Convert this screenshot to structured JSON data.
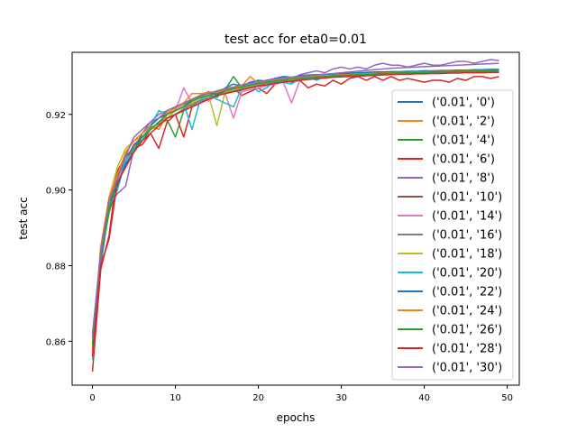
{
  "chart_data": {
    "type": "line",
    "title": "test acc for eta0=0.01",
    "xlabel": "epochs",
    "ylabel": "test acc",
    "xlim": [
      -2.45,
      51.45
    ],
    "ylim": [
      0.8484,
      0.9364
    ],
    "xticks": [
      0,
      10,
      20,
      30,
      40,
      50
    ],
    "xtick_labels": [
      "0",
      "10",
      "20",
      "30",
      "40",
      "50"
    ],
    "yticks": [
      0.86,
      0.88,
      0.9,
      0.92
    ],
    "ytick_labels": [
      "0.86",
      "0.88",
      "0.90",
      "0.92"
    ],
    "grid": false,
    "legend_position": "lower-right",
    "x": [
      0,
      1,
      2,
      3,
      4,
      5,
      6,
      7,
      8,
      9,
      10,
      11,
      12,
      13,
      14,
      15,
      16,
      17,
      18,
      19,
      20,
      21,
      22,
      23,
      24,
      25,
      26,
      27,
      28,
      29,
      30,
      31,
      32,
      33,
      34,
      35,
      36,
      37,
      38,
      39,
      40,
      41,
      42,
      43,
      44,
      45,
      46,
      47,
      48,
      49
    ],
    "series": [
      {
        "name": "('0.01', '0')",
        "color": "#1f77b4",
        "values": [
          0.86,
          0.88,
          0.895,
          0.9,
          0.908,
          0.912,
          0.914,
          0.916,
          0.918,
          0.919,
          0.92,
          0.921,
          0.923,
          0.924,
          0.925,
          0.9255,
          0.926,
          0.9265,
          0.927,
          0.9275,
          0.928,
          0.9282,
          0.9285,
          0.9288,
          0.929,
          0.9292,
          0.9295,
          0.9297,
          0.9298,
          0.93,
          0.9302,
          0.9303,
          0.9305,
          0.9306,
          0.9307,
          0.9308,
          0.9309,
          0.931,
          0.9311,
          0.9312,
          0.9313,
          0.9314,
          0.9314,
          0.9315,
          0.9315,
          0.9316,
          0.9316,
          0.9317,
          0.9317,
          0.9318
        ]
      },
      {
        "name": "('0.01', '2')",
        "color": "#ff7f0e",
        "values": [
          0.858,
          0.884,
          0.896,
          0.903,
          0.91,
          0.913,
          0.915,
          0.917,
          0.919,
          0.9205,
          0.9215,
          0.9225,
          0.924,
          0.9248,
          0.9255,
          0.9258,
          0.9262,
          0.9268,
          0.9272,
          0.9278,
          0.9282,
          0.9286,
          0.9288,
          0.9291,
          0.9293,
          0.9295,
          0.9297,
          0.9299,
          0.93,
          0.9301,
          0.9303,
          0.9304,
          0.9305,
          0.9306,
          0.9307,
          0.9308,
          0.9309,
          0.931,
          0.9311,
          0.9311,
          0.9312,
          0.9312,
          0.9313,
          0.9313,
          0.9314,
          0.9314,
          0.9315,
          0.9315,
          0.9316,
          0.9316
        ]
      },
      {
        "name": "('0.01', '4')",
        "color": "#2ca02c",
        "values": [
          0.861,
          0.882,
          0.894,
          0.901,
          0.907,
          0.911,
          0.914,
          0.9165,
          0.9175,
          0.9185,
          0.914,
          0.921,
          0.9235,
          0.9245,
          0.925,
          0.9245,
          0.9265,
          0.93,
          0.927,
          0.928,
          0.9275,
          0.9285,
          0.9282,
          0.929,
          0.9295,
          0.929,
          0.93,
          0.9296,
          0.9302,
          0.9299,
          0.9305,
          0.9301,
          0.9306,
          0.9304,
          0.9308,
          0.9306,
          0.931,
          0.9307,
          0.9311,
          0.9309,
          0.9313,
          0.931,
          0.9314,
          0.9311,
          0.9315,
          0.9312,
          0.9316,
          0.9313,
          0.9317,
          0.9314
        ]
      },
      {
        "name": "('0.01', '6')",
        "color": "#d62728",
        "values": [
          0.852,
          0.879,
          0.888,
          0.905,
          0.909,
          0.911,
          0.912,
          0.915,
          0.911,
          0.918,
          0.92,
          0.914,
          0.922,
          0.923,
          0.924,
          0.925,
          0.926,
          0.927,
          0.925,
          0.926,
          0.927,
          0.9255,
          0.928,
          0.929,
          0.9285,
          0.929,
          0.927,
          0.928,
          0.9275,
          0.929,
          0.928,
          0.9295,
          0.93,
          0.929,
          0.93,
          0.929,
          0.93,
          0.929,
          0.9295,
          0.929,
          0.9285,
          0.929,
          0.929,
          0.9285,
          0.9295,
          0.929,
          0.93,
          0.93,
          0.9295,
          0.93
        ]
      },
      {
        "name": "('0.01', '8')",
        "color": "#9467bd",
        "values": [
          0.859,
          0.881,
          0.896,
          0.899,
          0.901,
          0.911,
          0.915,
          0.918,
          0.92,
          0.921,
          0.922,
          0.923,
          0.922,
          0.924,
          0.925,
          0.926,
          0.9265,
          0.927,
          0.9275,
          0.928,
          0.9285,
          0.929,
          0.9295,
          0.93,
          0.929,
          0.9305,
          0.931,
          0.9315,
          0.931,
          0.932,
          0.9325,
          0.932,
          0.9325,
          0.932,
          0.933,
          0.9335,
          0.933,
          0.933,
          0.9325,
          0.933,
          0.9335,
          0.933,
          0.933,
          0.9335,
          0.934,
          0.934,
          0.9335,
          0.934,
          0.9345,
          0.9342
        ]
      },
      {
        "name": "('0.01', '10')",
        "color": "#8c564b",
        "values": [
          0.856,
          0.883,
          0.896,
          0.905,
          0.906,
          0.912,
          0.913,
          0.916,
          0.918,
          0.919,
          0.92,
          0.921,
          0.923,
          0.9235,
          0.924,
          0.925,
          0.9255,
          0.926,
          0.9265,
          0.927,
          0.9275,
          0.9278,
          0.9282,
          0.9286,
          0.9288,
          0.9291,
          0.9293,
          0.9295,
          0.9297,
          0.9299,
          0.93,
          0.9301,
          0.9302,
          0.9303,
          0.9304,
          0.9305,
          0.9306,
          0.9307,
          0.9308,
          0.9309,
          0.931,
          0.931,
          0.9311,
          0.9311,
          0.9312,
          0.9312,
          0.9313,
          0.9313,
          0.9314,
          0.9314
        ]
      },
      {
        "name": "('0.01', '14')",
        "color": "#e377c2",
        "values": [
          0.857,
          0.885,
          0.896,
          0.902,
          0.907,
          0.911,
          0.914,
          0.917,
          0.919,
          0.92,
          0.921,
          0.927,
          0.923,
          0.924,
          0.9235,
          0.925,
          0.9255,
          0.919,
          0.926,
          0.9265,
          0.927,
          0.9275,
          0.928,
          0.9285,
          0.923,
          0.929,
          0.9295,
          0.9298,
          0.93,
          0.9302,
          0.9304,
          0.9305,
          0.9306,
          0.9307,
          0.9308,
          0.9309,
          0.931,
          0.9311,
          0.9311,
          0.9312,
          0.9312,
          0.9313,
          0.9313,
          0.9314,
          0.9314,
          0.9315,
          0.9315,
          0.9316,
          0.9316,
          0.9316
        ]
      },
      {
        "name": "('0.01', '16')",
        "color": "#7f7f7f",
        "values": [
          0.858,
          0.884,
          0.895,
          0.903,
          0.908,
          0.911,
          0.914,
          0.916,
          0.918,
          0.919,
          0.92,
          0.9215,
          0.9225,
          0.9235,
          0.9245,
          0.925,
          0.9258,
          0.9262,
          0.9268,
          0.9272,
          0.9278,
          0.9282,
          0.9285,
          0.9288,
          0.9291,
          0.9293,
          0.9295,
          0.9297,
          0.9299,
          0.93,
          0.9302,
          0.9303,
          0.9304,
          0.9305,
          0.9306,
          0.9307,
          0.9308,
          0.9309,
          0.931,
          0.9311,
          0.9311,
          0.9312,
          0.9312,
          0.9313,
          0.9313,
          0.9314,
          0.9314,
          0.9315,
          0.9315,
          0.9315
        ]
      },
      {
        "name": "('0.01', '18')",
        "color": "#bcbd22",
        "values": [
          0.86,
          0.885,
          0.898,
          0.906,
          0.911,
          0.913,
          0.914,
          0.916,
          0.917,
          0.919,
          0.921,
          0.922,
          0.923,
          0.924,
          0.925,
          0.917,
          0.926,
          0.9265,
          0.927,
          0.9275,
          0.928,
          0.9285,
          0.929,
          0.9295,
          0.929,
          0.9297,
          0.93,
          0.9302,
          0.9303,
          0.9304,
          0.9305,
          0.9306,
          0.9307,
          0.9308,
          0.9309,
          0.931,
          0.931,
          0.9311,
          0.9311,
          0.9312,
          0.9312,
          0.9313,
          0.9313,
          0.9314,
          0.9314,
          0.9315,
          0.9315,
          0.9315,
          0.9316,
          0.9316
        ]
      },
      {
        "name": "('0.01', '20')",
        "color": "#17becf",
        "values": [
          0.855,
          0.884,
          0.897,
          0.9,
          0.908,
          0.911,
          0.913,
          0.917,
          0.921,
          0.92,
          0.922,
          0.923,
          0.916,
          0.924,
          0.925,
          0.924,
          0.923,
          0.922,
          0.927,
          0.928,
          0.926,
          0.927,
          0.929,
          0.9285,
          0.928,
          0.9295,
          0.93,
          0.929,
          0.93,
          0.9305,
          0.93,
          0.931,
          0.93,
          0.931,
          0.9305,
          0.931,
          0.9305,
          0.931,
          0.931,
          0.9312,
          0.9308,
          0.9312,
          0.931,
          0.9313,
          0.9311,
          0.9314,
          0.9312,
          0.9315,
          0.9313,
          0.9315
        ]
      },
      {
        "name": "('0.01', '22')",
        "color": "#1f77b4",
        "values": [
          0.862,
          0.883,
          0.897,
          0.901,
          0.907,
          0.91,
          0.915,
          0.917,
          0.919,
          0.92,
          0.921,
          0.922,
          0.924,
          0.925,
          0.926,
          0.925,
          0.927,
          0.928,
          0.9275,
          0.9285,
          0.929,
          0.9288,
          0.9295,
          0.93,
          0.9298,
          0.9302,
          0.9304,
          0.9305,
          0.9306,
          0.9307,
          0.9308,
          0.9309,
          0.931,
          0.9311,
          0.9312,
          0.9312,
          0.9313,
          0.9313,
          0.9314,
          0.9314,
          0.9315,
          0.9315,
          0.9316,
          0.9316,
          0.9317,
          0.9317,
          0.9318,
          0.9318,
          0.9319,
          0.9319
        ]
      },
      {
        "name": "('0.01', '24')",
        "color": "#ff7f0e",
        "values": [
          0.8575,
          0.885,
          0.898,
          0.904,
          0.91,
          0.913,
          0.915,
          0.917,
          0.916,
          0.92,
          0.922,
          0.923,
          0.9255,
          0.9255,
          0.9258,
          0.926,
          0.9266,
          0.927,
          0.9275,
          0.93,
          0.9282,
          0.9286,
          0.9289,
          0.9292,
          0.9294,
          0.9296,
          0.9298,
          0.93,
          0.9302,
          0.9303,
          0.9304,
          0.9305,
          0.9306,
          0.9307,
          0.9308,
          0.9309,
          0.931,
          0.9311,
          0.9311,
          0.9312,
          0.9312,
          0.9313,
          0.9313,
          0.9314,
          0.9314,
          0.9315,
          0.9315,
          0.9316,
          0.9316,
          0.9316
        ]
      },
      {
        "name": "('0.01', '26')",
        "color": "#2ca02c",
        "values": [
          0.859,
          0.883,
          0.895,
          0.903,
          0.909,
          0.91,
          0.914,
          0.916,
          0.918,
          0.92,
          0.921,
          0.922,
          0.9235,
          0.9245,
          0.925,
          0.9255,
          0.9262,
          0.9268,
          0.9272,
          0.9277,
          0.9281,
          0.9285,
          0.9288,
          0.9291,
          0.9293,
          0.9295,
          0.9297,
          0.9299,
          0.93,
          0.9302,
          0.9303,
          0.9304,
          0.9305,
          0.9306,
          0.9307,
          0.9308,
          0.9309,
          0.931,
          0.931,
          0.9311,
          0.9311,
          0.9312,
          0.9312,
          0.9313,
          0.9313,
          0.9314,
          0.9314,
          0.9315,
          0.9315,
          0.9315
        ]
      },
      {
        "name": "('0.01', '28')",
        "color": "#d62728",
        "values": [
          0.856,
          0.88,
          0.887,
          0.902,
          0.906,
          0.91,
          0.913,
          0.915,
          0.917,
          0.919,
          0.92,
          0.921,
          0.922,
          0.923,
          0.924,
          0.925,
          0.9255,
          0.926,
          0.9265,
          0.927,
          0.9275,
          0.9278,
          0.9282,
          0.9285,
          0.9288,
          0.929,
          0.9292,
          0.9294,
          0.9296,
          0.9298,
          0.9299,
          0.93,
          0.9301,
          0.9302,
          0.9303,
          0.9304,
          0.9305,
          0.9306,
          0.9306,
          0.9307,
          0.9307,
          0.9308,
          0.9308,
          0.9309,
          0.9309,
          0.931,
          0.931,
          0.931,
          0.9311,
          0.9311
        ]
      },
      {
        "name": "('0.01', '30')",
        "color": "#9467bd",
        "values": [
          0.861,
          0.884,
          0.897,
          0.903,
          0.909,
          0.914,
          0.916,
          0.918,
          0.919,
          0.921,
          0.922,
          0.923,
          0.924,
          0.925,
          0.9255,
          0.9262,
          0.9268,
          0.9272,
          0.9278,
          0.9282,
          0.9286,
          0.929,
          0.9293,
          0.9296,
          0.9298,
          0.93,
          0.9302,
          0.9304,
          0.9306,
          0.9308,
          0.931,
          0.9312,
          0.9314,
          0.9316,
          0.9318,
          0.932,
          0.9322,
          0.9323,
          0.9324,
          0.9325,
          0.9326,
          0.9327,
          0.9328,
          0.9329,
          0.933,
          0.9331,
          0.9332,
          0.9333,
          0.9334,
          0.9335
        ]
      }
    ]
  }
}
